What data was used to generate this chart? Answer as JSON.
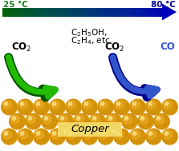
{
  "bg_color": "#ffffff",
  "temp_left": "25 °C",
  "temp_right": "80 °C",
  "temp_left_color": "#1a7a1a",
  "temp_right_color": "#00008B",
  "label_copper": "Copper",
  "sphere_color_base": "#D4920A",
  "sphere_color_mid": "#E8A820",
  "sphere_color_light": "#F5C842",
  "sphere_highlight": "#FAE080",
  "copper_label_bg": "#F5E070",
  "green_arrow_color": "#22BB00",
  "green_dark_color": "#005500",
  "blue_arrow_color": "#3355CC",
  "blue_light_color": "#6688EE",
  "blue_dark_color": "#000088",
  "figsize": [
    2.23,
    1.89
  ],
  "dpi": 100
}
